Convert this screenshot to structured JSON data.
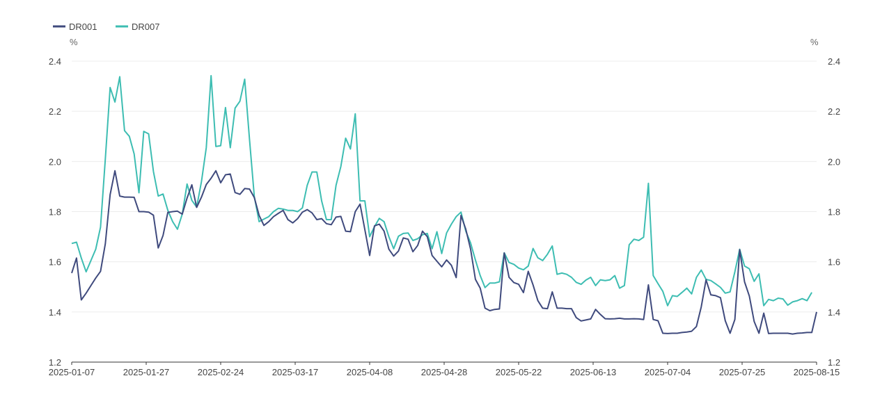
{
  "chart_data": {
    "type": "line",
    "left_unit": "%",
    "right_unit": "%",
    "ylim": [
      1.2,
      2.4
    ],
    "y_ticks": [
      "1.2",
      "1.4",
      "1.6",
      "1.8",
      "2.0",
      "2.2",
      "2.4"
    ],
    "x_tick_labels": [
      "2025-01-07",
      "2025-01-27",
      "2025-02-24",
      "2025-03-17",
      "2025-04-08",
      "2025-04-28",
      "2025-05-22",
      "2025-06-13",
      "2025-07-04",
      "2025-07-25",
      "2025-08-15"
    ],
    "grid": "horizontal",
    "legend_position": "top-left",
    "series": [
      {
        "name": "DR001",
        "color": "#3f4a7d",
        "values": [
          1.555,
          1.615,
          1.448,
          1.475,
          1.505,
          1.535,
          1.562,
          1.672,
          1.868,
          1.963,
          1.862,
          1.858,
          1.858,
          1.857,
          1.8,
          1.8,
          1.798,
          1.786,
          1.655,
          1.705,
          1.797,
          1.8,
          1.802,
          1.79,
          1.854,
          1.907,
          1.817,
          1.858,
          1.908,
          1.933,
          1.963,
          1.915,
          1.947,
          1.95,
          1.876,
          1.869,
          1.892,
          1.89,
          1.856,
          1.785,
          1.745,
          1.76,
          1.78,
          1.793,
          1.805,
          1.768,
          1.755,
          1.772,
          1.798,
          1.808,
          1.795,
          1.768,
          1.772,
          1.752,
          1.748,
          1.778,
          1.781,
          1.722,
          1.72,
          1.8,
          1.83,
          1.728,
          1.625,
          1.743,
          1.75,
          1.722,
          1.65,
          1.623,
          1.643,
          1.695,
          1.69,
          1.64,
          1.665,
          1.722,
          1.7,
          1.625,
          1.602,
          1.58,
          1.607,
          1.586,
          1.537,
          1.785,
          1.73,
          1.65,
          1.53,
          1.495,
          1.415,
          1.405,
          1.41,
          1.412,
          1.635,
          1.538,
          1.517,
          1.51,
          1.477,
          1.562,
          1.508,
          1.445,
          1.415,
          1.413,
          1.48,
          1.415,
          1.415,
          1.413,
          1.413,
          1.377,
          1.364,
          1.368,
          1.372,
          1.41,
          1.39,
          1.373,
          1.372,
          1.373,
          1.375,
          1.372,
          1.372,
          1.373,
          1.372,
          1.37,
          1.508,
          1.37,
          1.365,
          1.315,
          1.314,
          1.315,
          1.315,
          1.318,
          1.32,
          1.323,
          1.342,
          1.42,
          1.528,
          1.468,
          1.465,
          1.457,
          1.365,
          1.315,
          1.37,
          1.648,
          1.52,
          1.463,
          1.362,
          1.315,
          1.395,
          1.314,
          1.315,
          1.315,
          1.315,
          1.315,
          1.312,
          1.315,
          1.316,
          1.318,
          1.318,
          1.4
        ]
      },
      {
        "name": "DR007",
        "color": "#3dbdb2",
        "values": [
          1.673,
          1.678,
          1.615,
          1.56,
          1.605,
          1.65,
          1.738,
          2.01,
          2.295,
          2.237,
          2.338,
          2.123,
          2.1,
          2.03,
          1.875,
          2.12,
          2.11,
          1.96,
          1.862,
          1.87,
          1.805,
          1.76,
          1.73,
          1.79,
          1.91,
          1.845,
          1.818,
          1.92,
          2.055,
          2.342,
          2.06,
          2.063,
          2.215,
          2.055,
          2.213,
          2.24,
          2.328,
          2.088,
          1.86,
          1.76,
          1.77,
          1.78,
          1.8,
          1.813,
          1.81,
          1.805,
          1.805,
          1.8,
          1.815,
          1.905,
          1.958,
          1.958,
          1.843,
          1.768,
          1.768,
          1.905,
          1.98,
          2.093,
          2.05,
          2.19,
          1.843,
          1.843,
          1.7,
          1.74,
          1.773,
          1.76,
          1.7,
          1.652,
          1.702,
          1.713,
          1.715,
          1.685,
          1.692,
          1.708,
          1.713,
          1.652,
          1.72,
          1.633,
          1.715,
          1.75,
          1.78,
          1.798,
          1.722,
          1.675,
          1.607,
          1.545,
          1.497,
          1.515,
          1.515,
          1.52,
          1.636,
          1.597,
          1.59,
          1.575,
          1.568,
          1.583,
          1.653,
          1.616,
          1.605,
          1.63,
          1.663,
          1.55,
          1.555,
          1.55,
          1.538,
          1.518,
          1.51,
          1.527,
          1.538,
          1.505,
          1.528,
          1.525,
          1.528,
          1.545,
          1.495,
          1.505,
          1.668,
          1.69,
          1.685,
          1.698,
          1.913,
          1.545,
          1.513,
          1.482,
          1.425,
          1.465,
          1.462,
          1.478,
          1.495,
          1.472,
          1.538,
          1.567,
          1.53,
          1.525,
          1.512,
          1.498,
          1.475,
          1.48,
          1.56,
          1.65,
          1.583,
          1.572,
          1.522,
          1.552,
          1.425,
          1.45,
          1.445,
          1.455,
          1.452,
          1.427,
          1.44,
          1.445,
          1.453,
          1.445,
          1.478
        ]
      }
    ]
  }
}
